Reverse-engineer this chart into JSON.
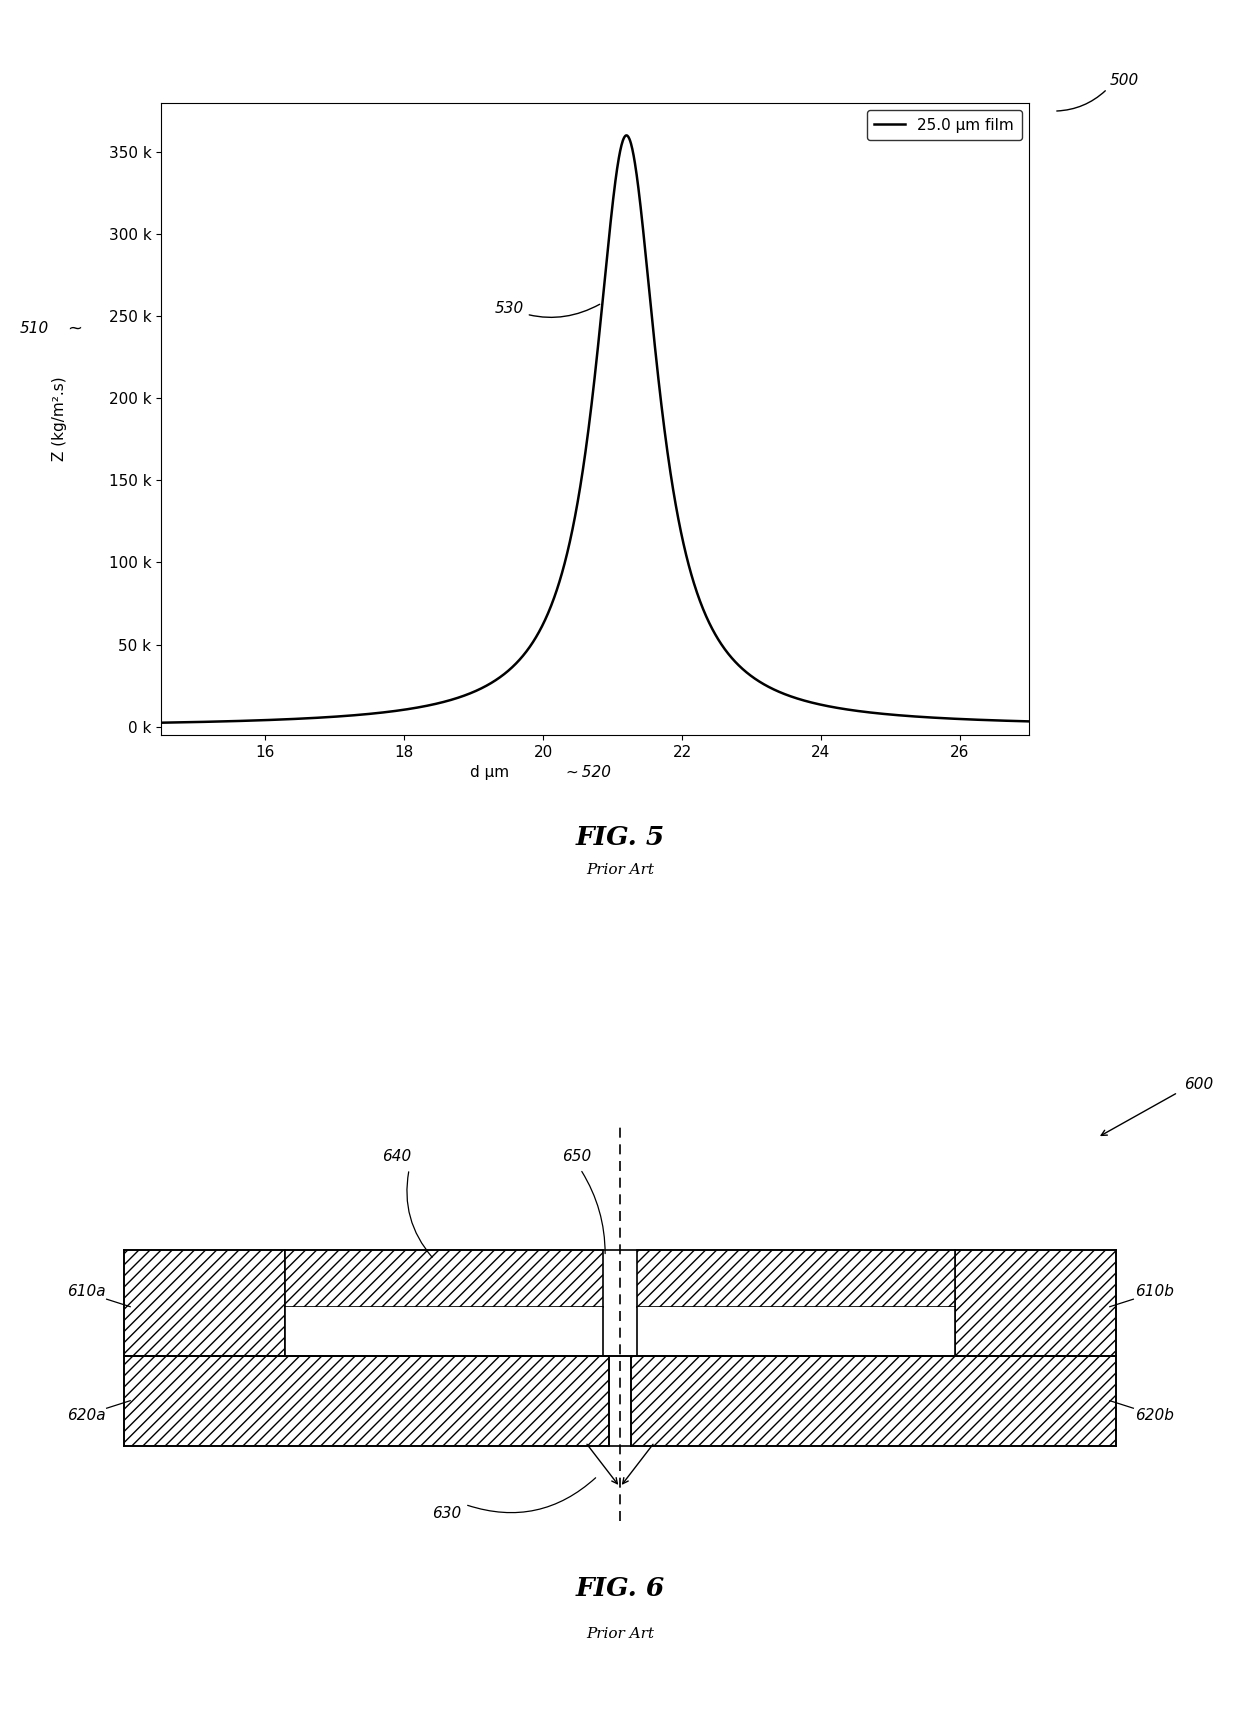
{
  "fig_width": 12.4,
  "fig_height": 17.09,
  "bg_color": "#ffffff",
  "plot1": {
    "xlim": [
      14.5,
      27
    ],
    "ylim": [
      -5000,
      380000
    ],
    "xticks": [
      16,
      18,
      20,
      22,
      24,
      26
    ],
    "yticks": [
      0,
      50000,
      100000,
      150000,
      200000,
      250000,
      300000,
      350000
    ],
    "ytick_labels": [
      "0 k",
      "50 k",
      "100 k",
      "150 k",
      "200 k",
      "250 k",
      "300 k",
      "350 k"
    ],
    "xlabel": "d μm",
    "xlabel_ref": "520",
    "ylabel": "Z (kg/m².s)",
    "ylabel_ref": "510",
    "legend_label": "25.0 μm film",
    "peak_x": 21.2,
    "peak_y": 360000,
    "sigma": 0.55,
    "ref_500": "500",
    "ref_530": "530",
    "line_color": "#000000"
  },
  "fig5_label": "FIG. 5",
  "fig5_sub": "Prior Art",
  "fig6_label": "FIG. 6",
  "fig6_sub": "Prior Art",
  "diagram": {
    "ref_600": "600",
    "ref_610a": "610a",
    "ref_610b": "610b",
    "ref_620a": "620a",
    "ref_620b": "620b",
    "ref_630": "630",
    "ref_640": "640",
    "ref_650": "650"
  }
}
